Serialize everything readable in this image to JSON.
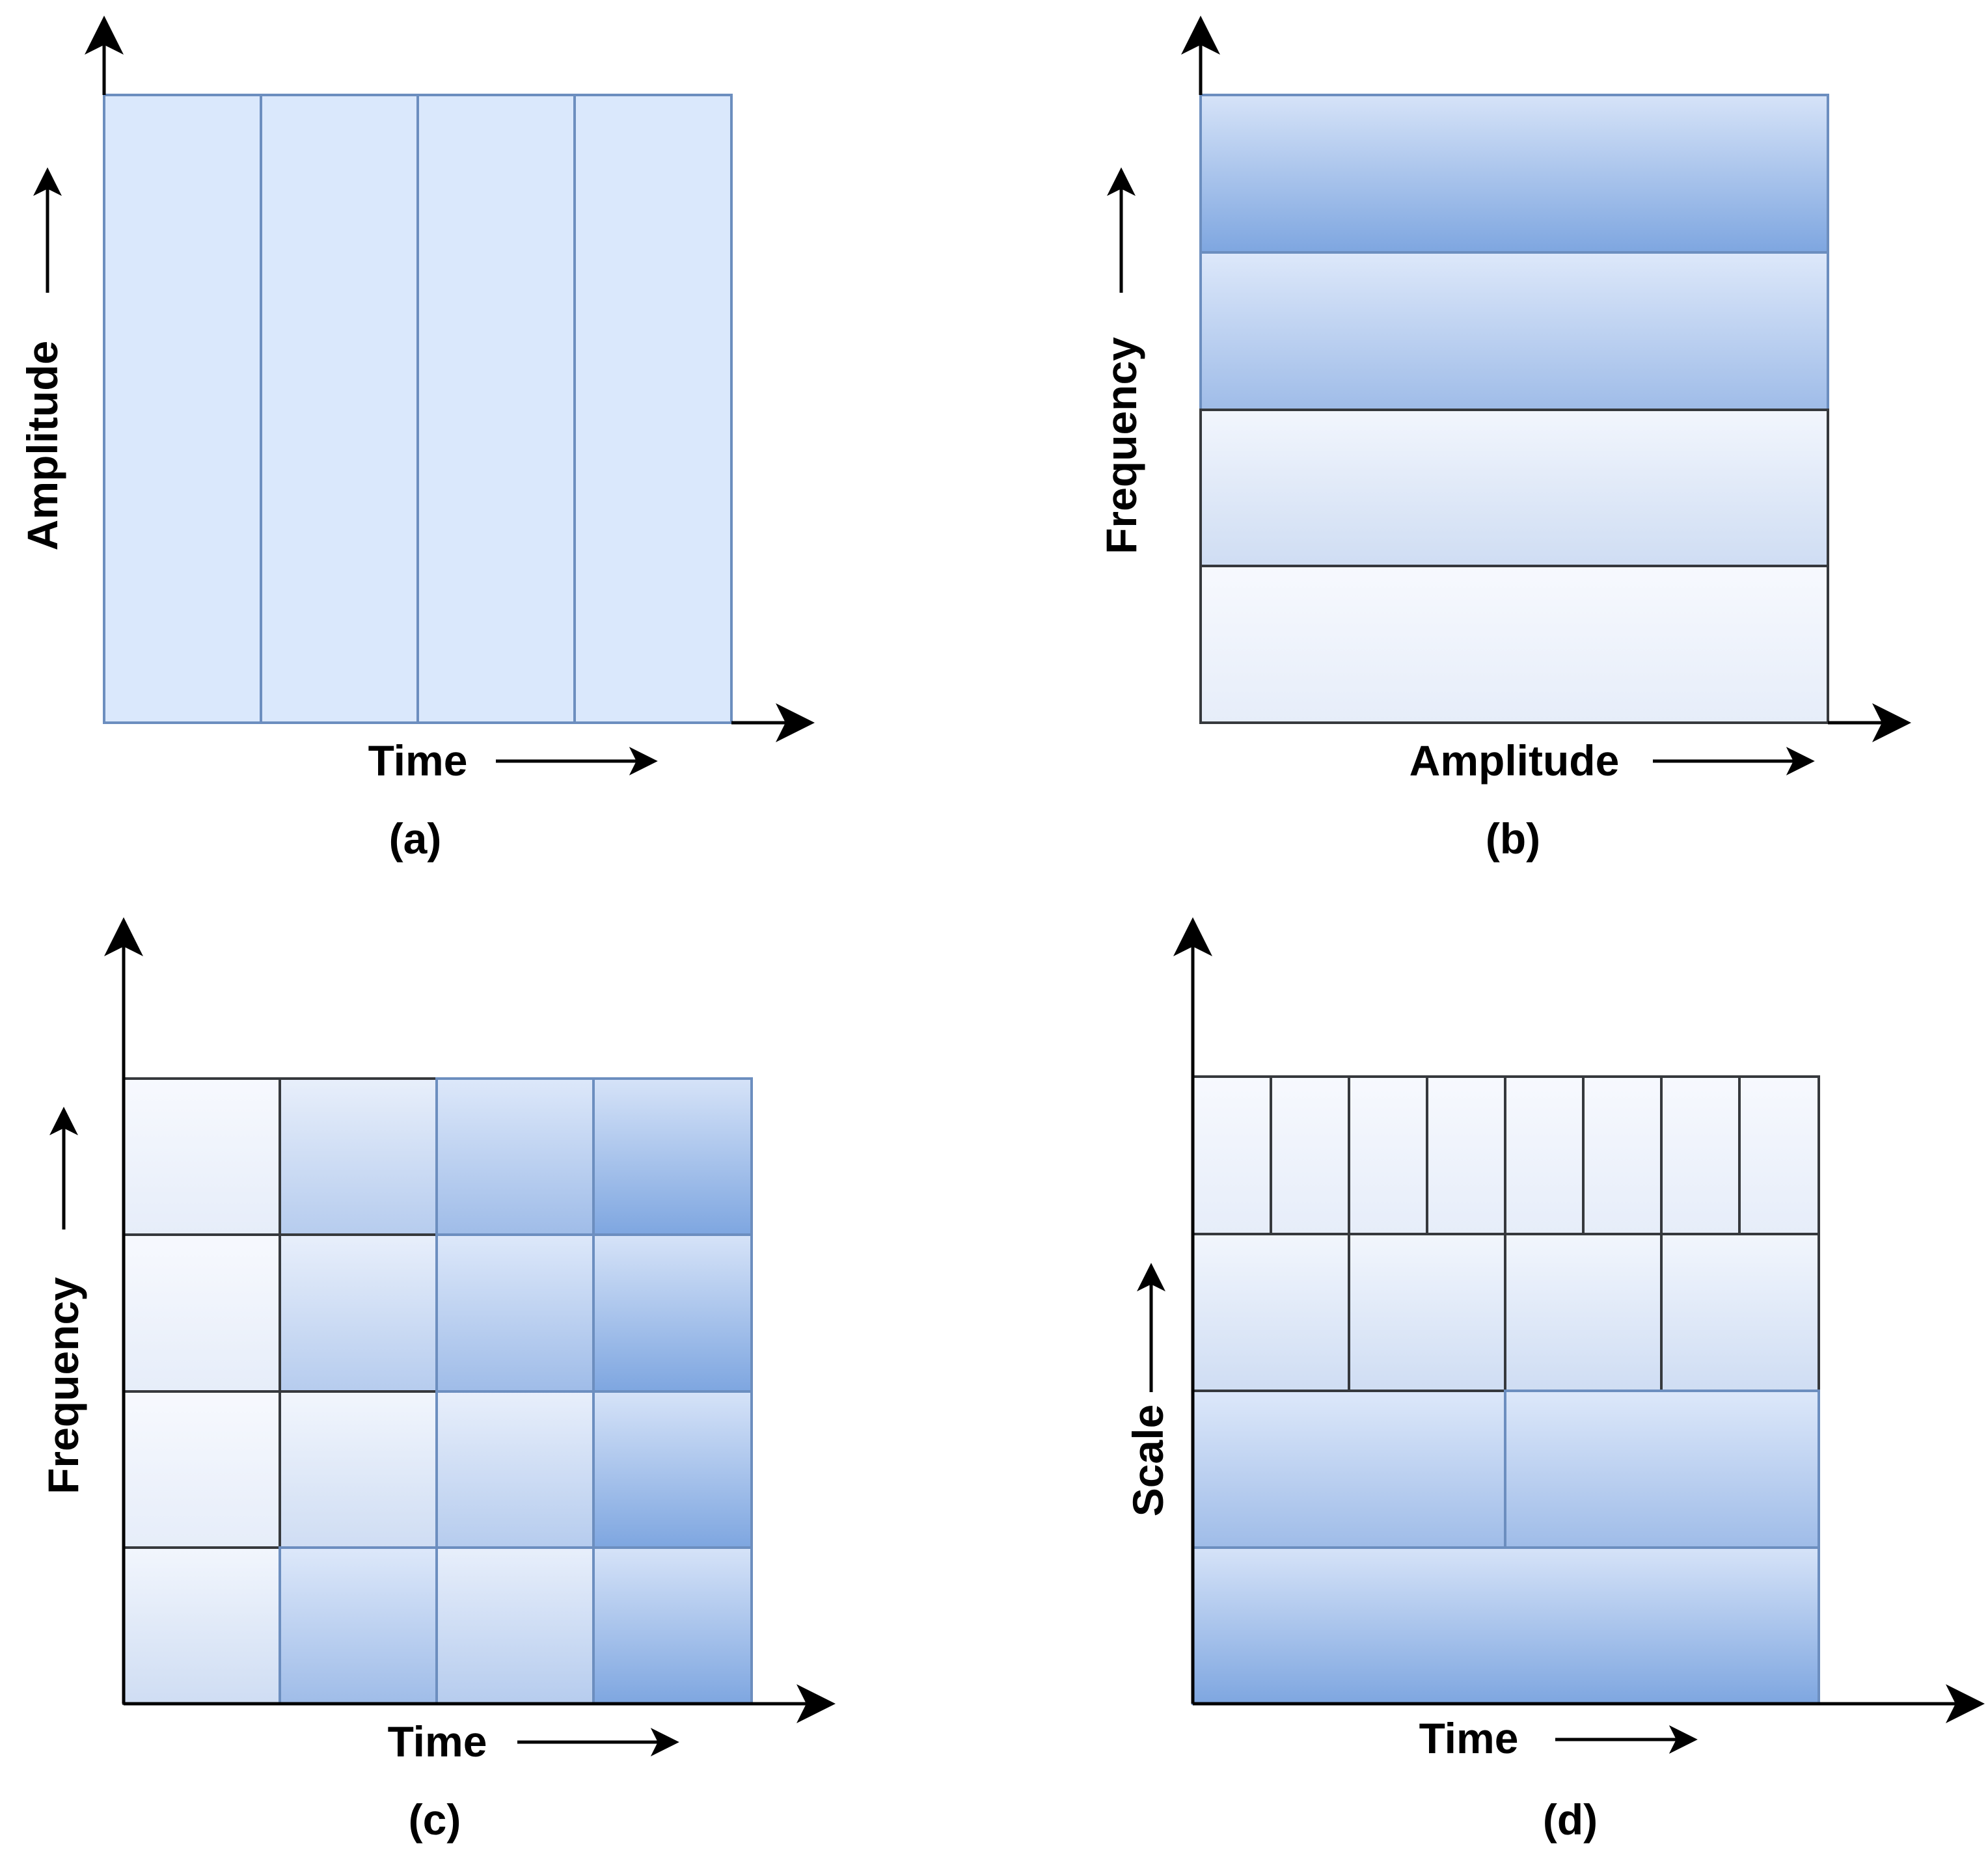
{
  "panels": [
    {
      "caption": "(a)",
      "x_label": "Time",
      "y_label": "Amplitude"
    },
    {
      "caption": "(b)",
      "x_label": "Amplitude",
      "y_label": "Frequency"
    },
    {
      "caption": "(c)",
      "x_label": "Time",
      "y_label": "Frequency"
    },
    {
      "caption": "(d)",
      "x_label": "Time",
      "y_label": "Scale"
    }
  ],
  "colors": {
    "tile_flat": "#dae8fc",
    "tile_border": "#6c8ebf",
    "grad_light": "#f2f6fd",
    "grad_dark": "#7ea6e0",
    "axis": "#000000"
  }
}
